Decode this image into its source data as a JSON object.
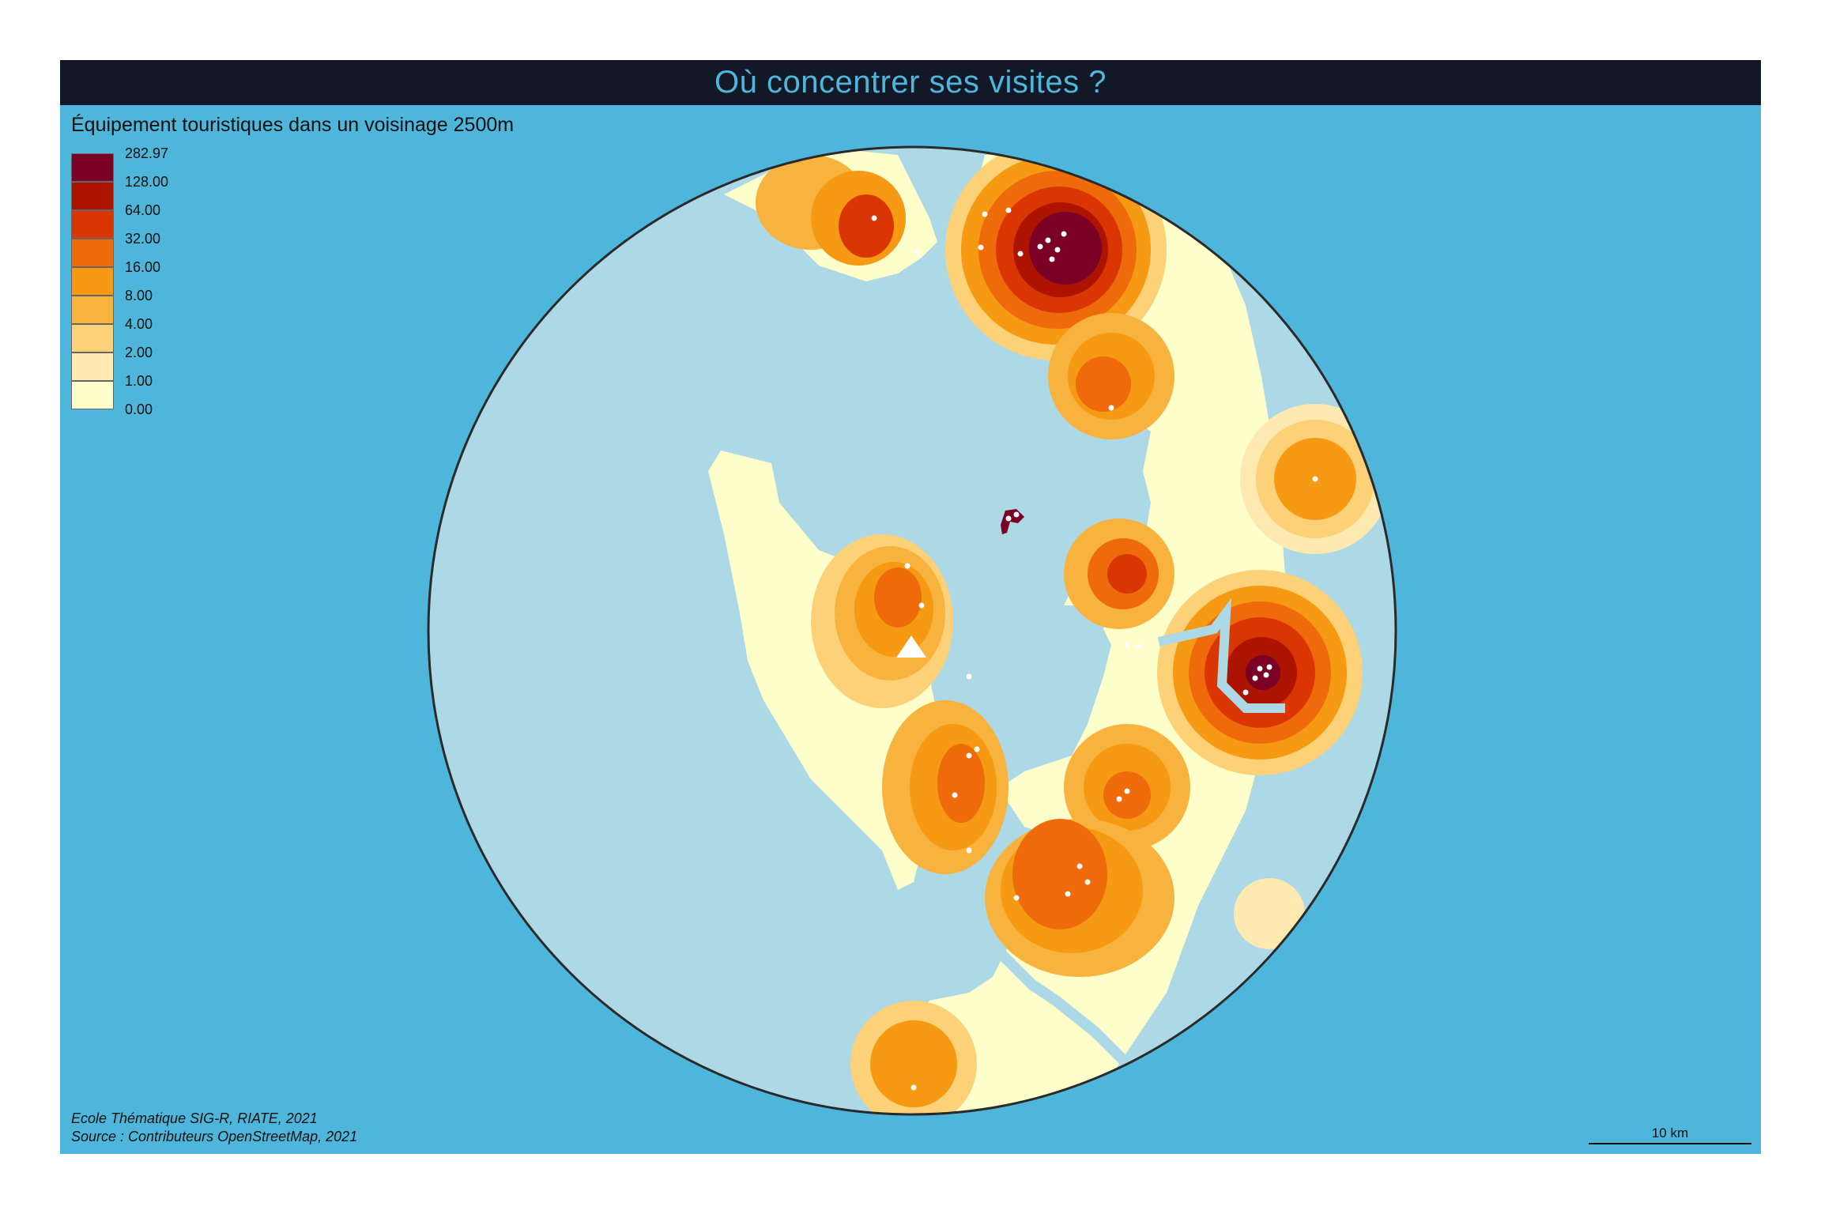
{
  "title": "Où concentrer ses visites ?",
  "legend": {
    "title": "Équipement touristiques dans un voisinage 2500m",
    "classes": [
      {
        "label": "282.97",
        "color": "#7a0026"
      },
      {
        "label": "128.00",
        "color": "#ad1400"
      },
      {
        "label": "64.00",
        "color": "#d93604"
      },
      {
        "label": "32.00",
        "color": "#ee6a0a"
      },
      {
        "label": "16.00",
        "color": "#f59a12"
      },
      {
        "label": "8.00",
        "color": "#f8b23e"
      },
      {
        "label": "4.00",
        "color": "#fcd177"
      },
      {
        "label": "2.00",
        "color": "#feeab0"
      },
      {
        "label": "1.00",
        "color": "#ffffcc"
      },
      {
        "label": "0.00",
        "color": ""
      }
    ]
  },
  "colors": {
    "ocean": "#4eb6da",
    "water": "#add8e6",
    "land_base": "#ffffcc",
    "title_bar": "#121826",
    "title_text": "#4eb6da",
    "points": "#ffffff"
  },
  "credits": {
    "line1": "Ecole Thématique SIG-R, RIATE, 2021",
    "line2": "Source : Contributeurs OpenStreetMap, 2021"
  },
  "scalebar": {
    "label": "10 km"
  }
}
